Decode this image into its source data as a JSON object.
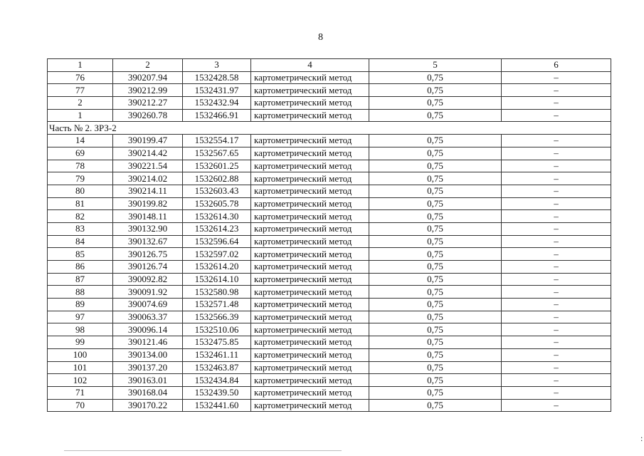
{
  "page_number": "8",
  "table": {
    "headers": [
      "1",
      "2",
      "3",
      "4",
      "5",
      "6"
    ],
    "groups": [
      {
        "section": null,
        "rows": [
          [
            "76",
            "390207.94",
            "1532428.58",
            "картометрический метод",
            "0,75",
            "–"
          ],
          [
            "77",
            "390212.99",
            "1532431.97",
            "картометрический метод",
            "0,75",
            "–"
          ],
          [
            "2",
            "390212.27",
            "1532432.94",
            "картометрический метод",
            "0,75",
            "–"
          ],
          [
            "1",
            "390260.78",
            "1532466.91",
            "картометрический метод",
            "0,75",
            "–"
          ]
        ]
      },
      {
        "section": "Часть № 2. ЗРЗ-2",
        "rows": [
          [
            "14",
            "390199.47",
            "1532554.17",
            "картометрический метод",
            "0,75",
            "–"
          ],
          [
            "69",
            "390214.42",
            "1532567.65",
            "картометрический метод",
            "0,75",
            "–"
          ],
          [
            "78",
            "390221.54",
            "1532601.25",
            "картометрический метод",
            "0,75",
            "–"
          ],
          [
            "79",
            "390214.02",
            "1532602.88",
            "картометрический метод",
            "0,75",
            "–"
          ],
          [
            "80",
            "390214.11",
            "1532603.43",
            "картометрический метод",
            "0,75",
            "–"
          ],
          [
            "81",
            "390199.82",
            "1532605.78",
            "картометрический метод",
            "0,75",
            "–"
          ],
          [
            "82",
            "390148.11",
            "1532614.30",
            "картометрический метод",
            "0,75",
            "–"
          ],
          [
            "83",
            "390132.90",
            "1532614.23",
            "картометрический метод",
            "0,75",
            "–"
          ],
          [
            "84",
            "390132.67",
            "1532596.64",
            "картометрический метод",
            "0,75",
            "–"
          ],
          [
            "85",
            "390126.75",
            "1532597.02",
            "картометрический метод",
            "0,75",
            "–"
          ],
          [
            "86",
            "390126.74",
            "1532614.20",
            "картометрический метод",
            "0,75",
            "–"
          ],
          [
            "87",
            "390092.82",
            "1532614.10",
            "картометрический метод",
            "0,75",
            "–"
          ],
          [
            "88",
            "390091.92",
            "1532580.98",
            "картометрический метод",
            "0,75",
            "–"
          ],
          [
            "89",
            "390074.69",
            "1532571.48",
            "картометрический метод",
            "0,75",
            "–"
          ],
          [
            "97",
            "390063.37",
            "1532566.39",
            "картометрический метод",
            "0,75",
            "–"
          ],
          [
            "98",
            "390096.14",
            "1532510.06",
            "картометрический метод",
            "0,75",
            "–"
          ],
          [
            "99",
            "390121.46",
            "1532475.85",
            "картометрический метод",
            "0,75",
            "–"
          ],
          [
            "100",
            "390134.00",
            "1532461.11",
            "картометрический метод",
            "0,75",
            "–"
          ],
          [
            "101",
            "390137.20",
            "1532463.87",
            "картометрический метод",
            "0,75",
            "–"
          ],
          [
            "102",
            "390163.01",
            "1532434.84",
            "картометрический метод",
            "0,75",
            "–"
          ],
          [
            "71",
            "390168.04",
            "1532439.50",
            "картометрический метод",
            "0,75",
            "–"
          ],
          [
            "70",
            "390170.22",
            "1532441.60",
            "картометрический метод",
            "0,75",
            "–"
          ]
        ]
      }
    ]
  }
}
